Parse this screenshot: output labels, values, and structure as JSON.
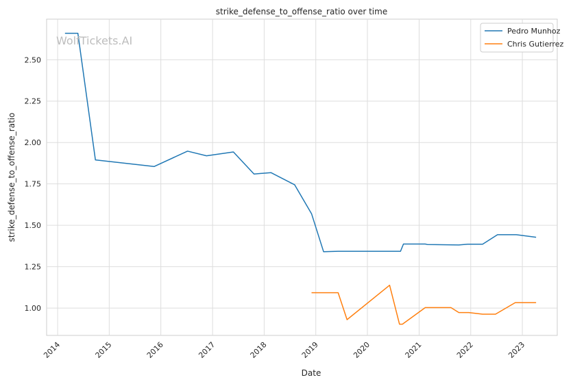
{
  "chart_data": {
    "type": "line",
    "title": "strike_defense_to_offense_ratio over time",
    "xlabel": "Date",
    "ylabel": "strike_defense_to_offense_ratio",
    "watermark": "WolfTickets.AI",
    "xlim": [
      "2013-10-15",
      "2023-09-05"
    ],
    "ylim": [
      0.835,
      2.745
    ],
    "x_ticks": [
      "2014",
      "2015",
      "2016",
      "2017",
      "2018",
      "2019",
      "2020",
      "2021",
      "2022",
      "2023"
    ],
    "y_ticks": [
      "1.00",
      "1.25",
      "1.50",
      "1.75",
      "2.00",
      "2.25",
      "2.50"
    ],
    "grid": true,
    "legend_position": "top-right",
    "series": [
      {
        "name": "Pedro Munhoz",
        "color": "#1f77b4",
        "points": [
          [
            "2014-02-22",
            2.66
          ],
          [
            "2014-05-24",
            2.66
          ],
          [
            "2014-09-25",
            1.895
          ],
          [
            "2015-11-14",
            1.855
          ],
          [
            "2016-07-08",
            1.948
          ],
          [
            "2016-11-19",
            1.92
          ],
          [
            "2017-05-28",
            1.943
          ],
          [
            "2017-10-21",
            1.81
          ],
          [
            "2018-02-18",
            1.818
          ],
          [
            "2018-08-04",
            1.745
          ],
          [
            "2018-12-02",
            1.57
          ],
          [
            "2019-02-25",
            1.34
          ],
          [
            "2019-06-08",
            1.343
          ],
          [
            "2020-08-22",
            1.343
          ],
          [
            "2020-09-12",
            1.387
          ],
          [
            "2021-02-13",
            1.387
          ],
          [
            "2021-02-28",
            1.384
          ],
          [
            "2021-10-09",
            1.381
          ],
          [
            "2021-12-11",
            1.386
          ],
          [
            "2022-03-26",
            1.386
          ],
          [
            "2022-07-09",
            1.443
          ],
          [
            "2022-11-19",
            1.443
          ],
          [
            "2023-04-08",
            1.428
          ]
        ]
      },
      {
        "name": "Chris Gutierrez",
        "color": "#ff7f0e",
        "points": [
          [
            "2018-12-02",
            1.093
          ],
          [
            "2019-06-08",
            1.093
          ],
          [
            "2019-08-10",
            0.93
          ],
          [
            "2020-06-06",
            1.138
          ],
          [
            "2020-08-15",
            0.903
          ],
          [
            "2020-09-05",
            0.903
          ],
          [
            "2021-02-13",
            1.003
          ],
          [
            "2021-08-14",
            1.003
          ],
          [
            "2021-10-09",
            0.973
          ],
          [
            "2021-12-18",
            0.973
          ],
          [
            "2022-03-26",
            0.963
          ],
          [
            "2022-06-25",
            0.963
          ],
          [
            "2022-11-12",
            1.033
          ],
          [
            "2023-04-08",
            1.033
          ]
        ]
      }
    ]
  }
}
